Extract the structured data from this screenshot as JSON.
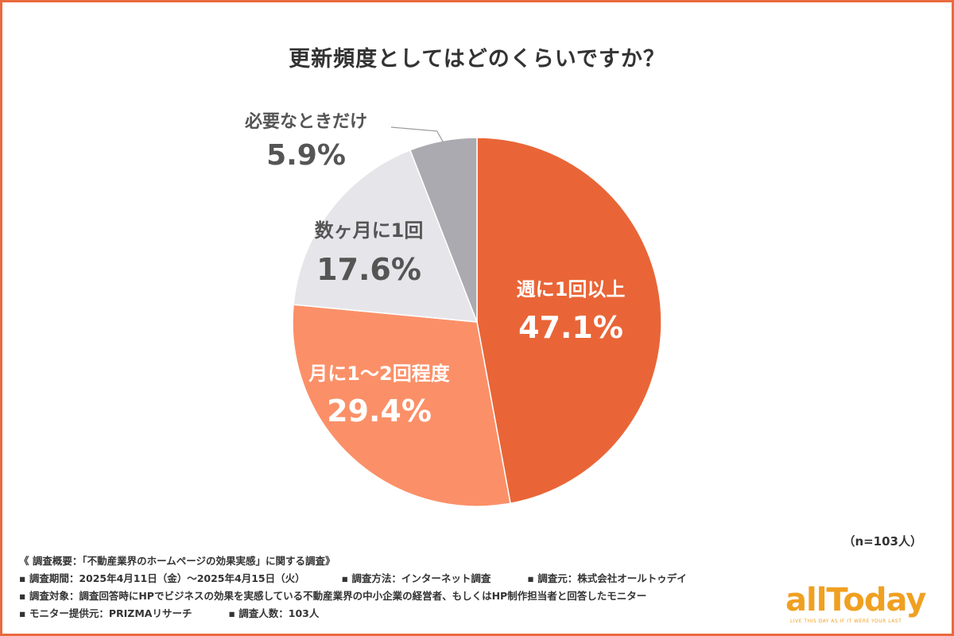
{
  "title": "更新頻度としてはどのくらいですか？",
  "chart_data": {
    "type": "pie",
    "title": "更新頻度としてはどのくらいですか？",
    "slices": [
      {
        "label": "週に1回以上",
        "value": 47.1,
        "display": "47.1%",
        "color": "#e96537",
        "text_color": "#ffffff"
      },
      {
        "label": "月に1〜2回程度",
        "value": 29.4,
        "display": "29.4%",
        "color": "#fb9068",
        "text_color": "#ffffff"
      },
      {
        "label": "数ヶ月に1回",
        "value": 17.6,
        "display": "17.6%",
        "color": "#e6e6ea",
        "text_color": "#555555"
      },
      {
        "label": "必要なときだけ",
        "value": 5.9,
        "display": "5.9%",
        "color": "#abaab0",
        "text_color": "#555555"
      }
    ]
  },
  "sample_size": "（n=103人）",
  "notes": {
    "header": "《 調査概要：「不動産業界のホームページの効果実感」に関する調査》",
    "period": "▪ 調査期間：2025年4月11日（金）〜2025年4月15日（火）",
    "method": "▪ 調査方法：インターネット調査",
    "source": "▪ 調査元：株式会社オールトゥデイ",
    "target": "▪ 調査対象：調査回答時にHPでビジネスの効果を実感している不動産業界の中小企業の経営者、もしくはHP制作担当者と回答したモニター",
    "provider": "▪ モニター提供元：PRIZMAリサーチ",
    "count": "▪ 調査人数：103人"
  },
  "logo": {
    "name": "allToday",
    "tagline": "LIVE THIS DAY AS IF IT WERE YOUR LAST"
  }
}
